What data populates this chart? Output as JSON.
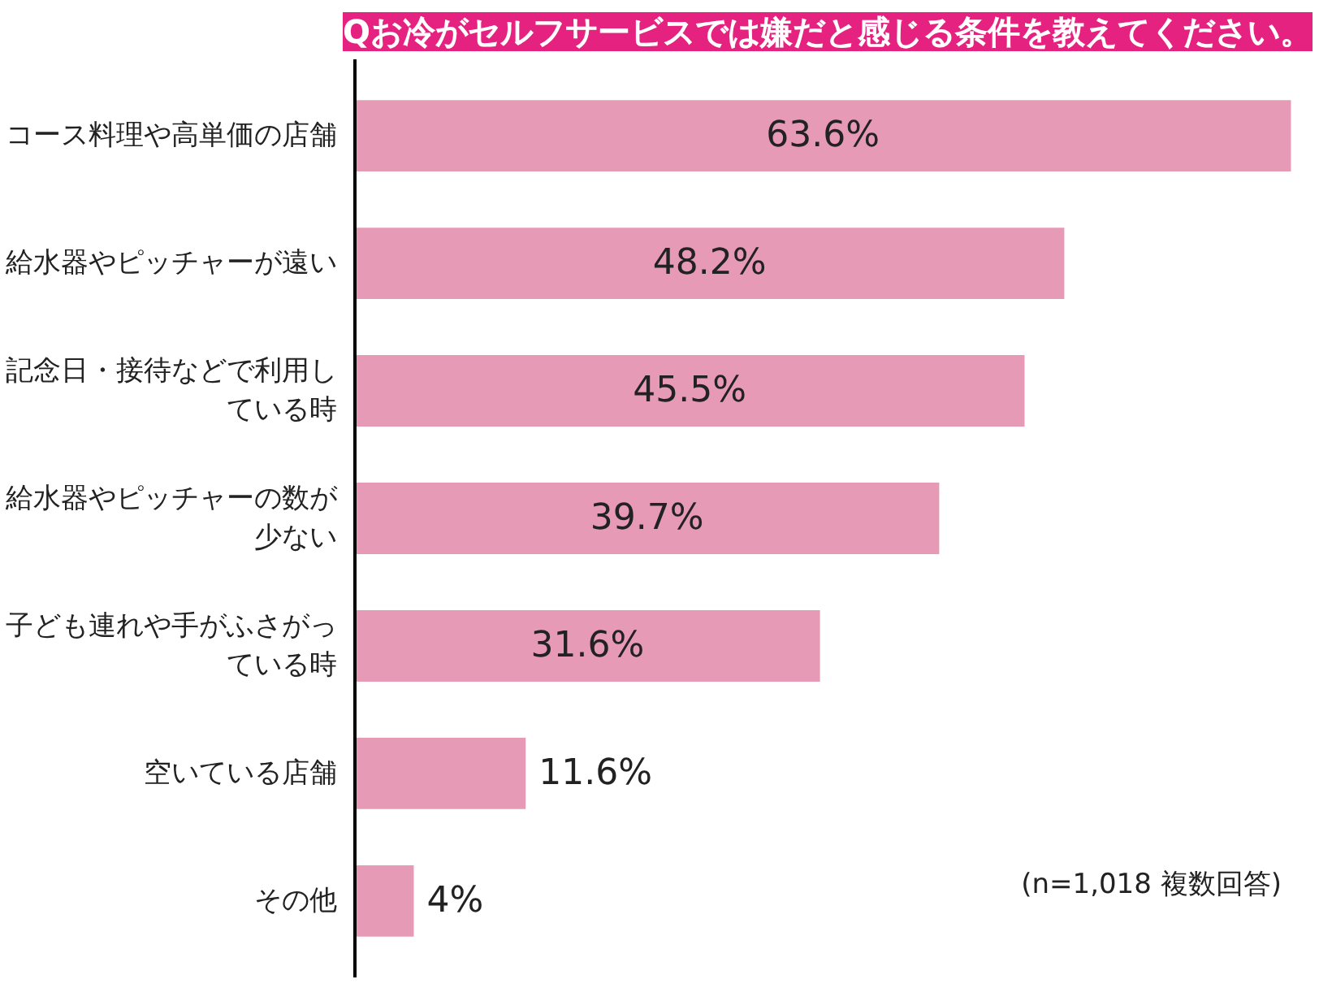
{
  "chart_data": {
    "type": "bar",
    "orientation": "horizontal",
    "title": "Qお冷がセルフサービスでは嫌だと感じる条件を教えてください。",
    "categories": [
      "コース料理や高単価の店舗",
      "給水器やピッチャーが遠い",
      "記念日・接待などで利用している時",
      "給水器やピッチャーの数が少ない",
      "子ども連れや手がふさがっている時",
      "空いている店舗",
      "その他"
    ],
    "values": [
      63.6,
      48.2,
      45.5,
      39.7,
      31.6,
      11.6,
      4
    ],
    "value_labels": [
      "63.6%",
      "48.2%",
      "45.5%",
      "39.7%",
      "31.6%",
      "11.6%",
      "4%"
    ],
    "color": "#e79ab5",
    "grid": false,
    "tick_labels": "y",
    "annotations": [
      "(n=1,018 複数回答)"
    ]
  }
}
